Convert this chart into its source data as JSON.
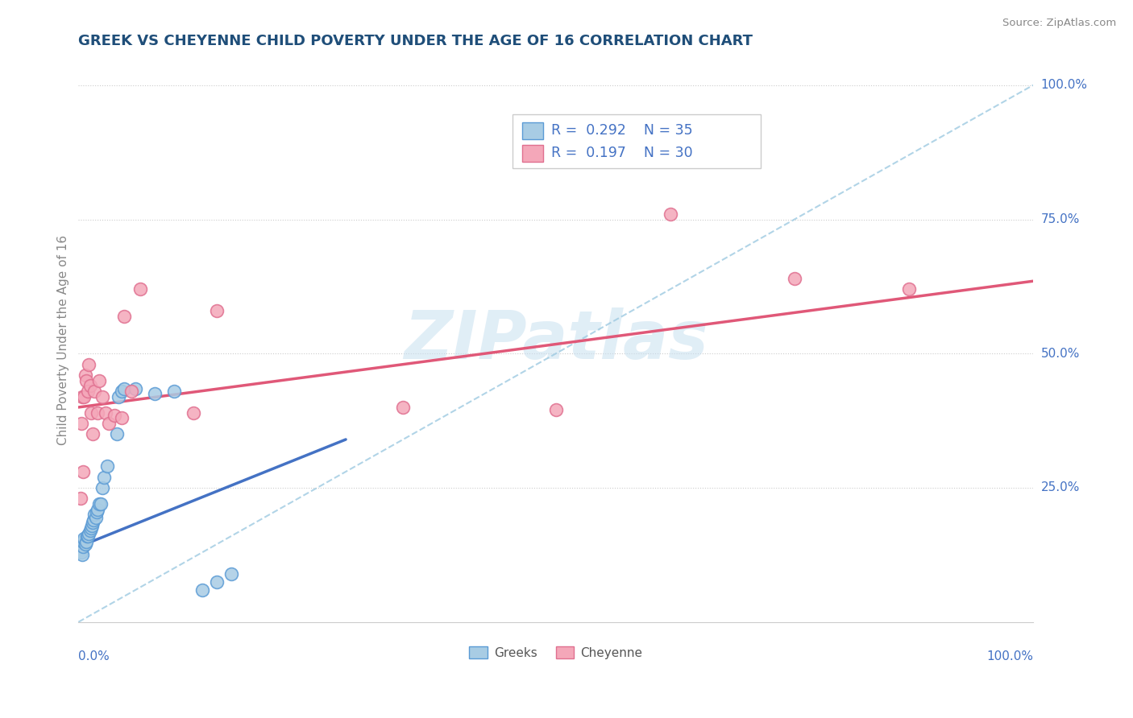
{
  "title": "GREEK VS CHEYENNE CHILD POVERTY UNDER THE AGE OF 16 CORRELATION CHART",
  "source": "Source: ZipAtlas.com",
  "ylabel": "Child Poverty Under the Age of 16",
  "watermark": "ZIPatlas",
  "legend_r1": "0.292",
  "legend_n1": "35",
  "legend_r2": "0.197",
  "legend_n2": "30",
  "greek_face_color": "#a8cce4",
  "greek_edge_color": "#5b9bd5",
  "cheyenne_face_color": "#f4a7b9",
  "cheyenne_edge_color": "#e07090",
  "greek_line_color": "#4472c4",
  "cheyenne_line_color": "#e05878",
  "dashed_line_color": "#9ecae1",
  "title_color": "#1f4e79",
  "tick_label_color": "#4472c4",
  "greek_x": [
    0.002,
    0.003,
    0.004,
    0.005,
    0.005,
    0.006,
    0.007,
    0.008,
    0.009,
    0.01,
    0.011,
    0.012,
    0.013,
    0.014,
    0.015,
    0.016,
    0.017,
    0.018,
    0.019,
    0.02,
    0.022,
    0.023,
    0.025,
    0.027,
    0.03,
    0.04,
    0.042,
    0.045,
    0.048,
    0.06,
    0.08,
    0.1,
    0.13,
    0.145,
    0.16
  ],
  "greek_y": [
    0.135,
    0.13,
    0.125,
    0.14,
    0.15,
    0.155,
    0.145,
    0.15,
    0.16,
    0.16,
    0.165,
    0.17,
    0.175,
    0.18,
    0.185,
    0.19,
    0.2,
    0.195,
    0.205,
    0.21,
    0.22,
    0.22,
    0.25,
    0.27,
    0.29,
    0.35,
    0.42,
    0.43,
    0.435,
    0.435,
    0.425,
    0.43,
    0.06,
    0.075,
    0.09
  ],
  "cheyenne_x": [
    0.002,
    0.003,
    0.004,
    0.005,
    0.006,
    0.007,
    0.008,
    0.01,
    0.011,
    0.012,
    0.013,
    0.015,
    0.017,
    0.02,
    0.022,
    0.025,
    0.028,
    0.032,
    0.038,
    0.045,
    0.048,
    0.055,
    0.065,
    0.12,
    0.145,
    0.34,
    0.5,
    0.62,
    0.75,
    0.87
  ],
  "cheyenne_y": [
    0.23,
    0.37,
    0.42,
    0.28,
    0.42,
    0.46,
    0.45,
    0.43,
    0.48,
    0.44,
    0.39,
    0.35,
    0.43,
    0.39,
    0.45,
    0.42,
    0.39,
    0.37,
    0.385,
    0.38,
    0.57,
    0.43,
    0.62,
    0.39,
    0.58,
    0.4,
    0.395,
    0.76,
    0.64,
    0.62
  ],
  "xlim": [
    0.0,
    1.0
  ],
  "ylim": [
    0.0,
    1.05
  ],
  "greek_line_x": [
    0.0,
    0.28
  ],
  "greek_line_y": [
    0.14,
    0.34
  ],
  "cheyenne_line_x": [
    0.0,
    1.0
  ],
  "cheyenne_line_y": [
    0.4,
    0.635
  ],
  "dashed_line_x": [
    0.0,
    1.0
  ],
  "dashed_line_y": [
    0.0,
    1.0
  ]
}
